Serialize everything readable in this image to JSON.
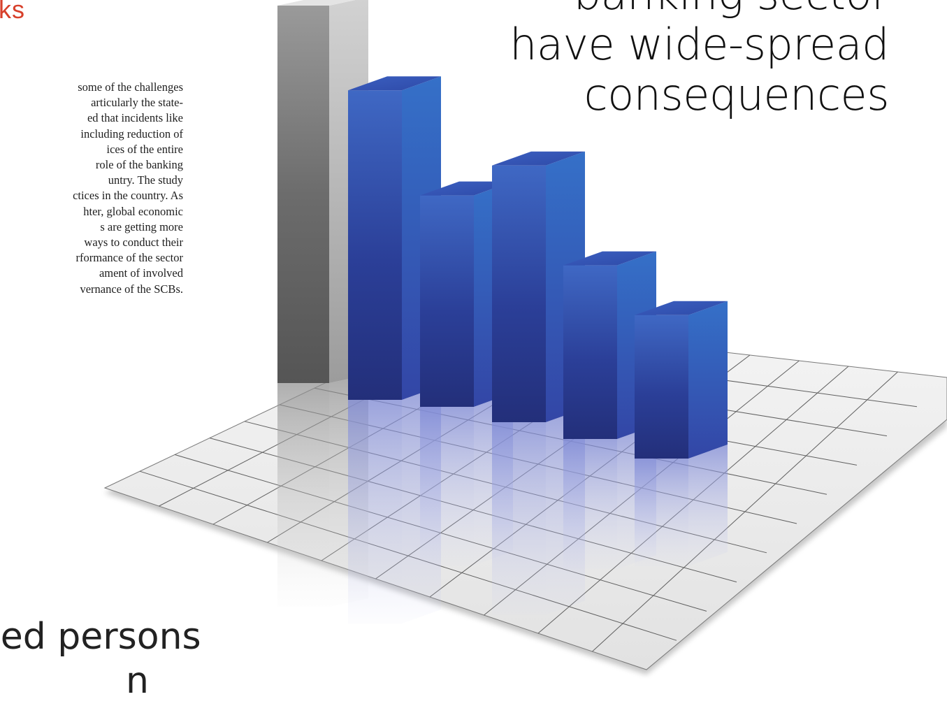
{
  "heading": {
    "text": "ks"
  },
  "body_lines": [
    "some of the challenges",
    "articularly the state-",
    "ed that incidents like",
    "including reduction of",
    "ices of the entire",
    "role of the banking",
    "untry. The study",
    "ctices in the country. As",
    "hter, global economic",
    "s are getting more",
    "ways to conduct their",
    "rformance of the sector",
    "ament of involved",
    "vernance of the SCBs."
  ],
  "pull_quote": {
    "line1": "banking sector",
    "line2": "have wide-spread",
    "line3": "consequences"
  },
  "bottom_quote": {
    "line1": "ved persons",
    "line2": "n"
  },
  "colors": {
    "heading": "#d7402b",
    "bar_blue": "#2f4aa8",
    "bar_gray": "#8a8a8a",
    "floor": "#ececec"
  },
  "chart_data": {
    "type": "bar",
    "categories": [
      "",
      "",
      "",
      "",
      "",
      ""
    ],
    "series": [
      {
        "values": [
          10,
          8.2,
          5.6,
          6.8,
          4.6,
          3.8
        ]
      }
    ],
    "grid": true
  }
}
